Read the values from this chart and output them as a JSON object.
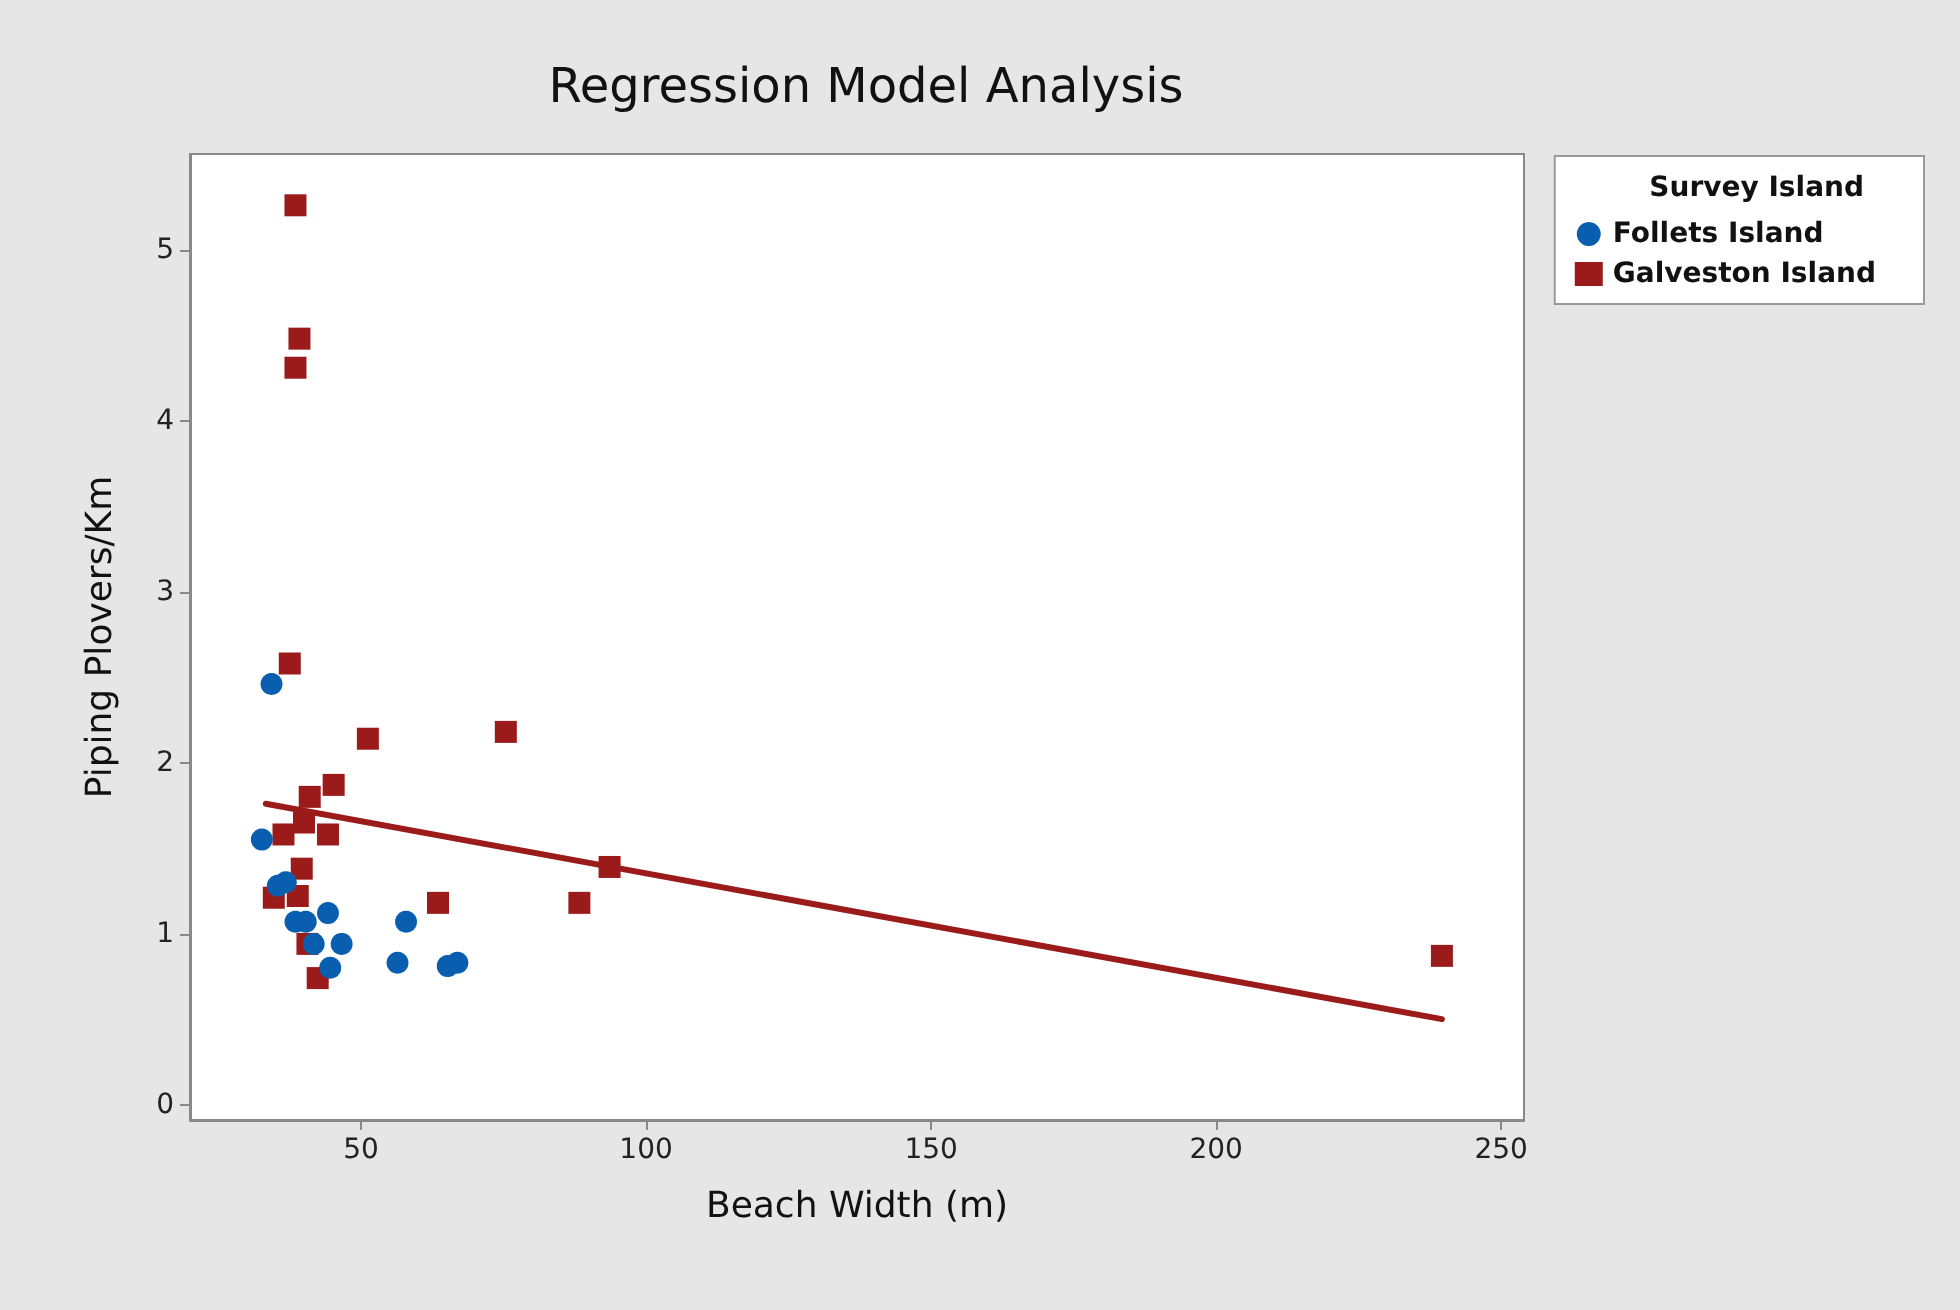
{
  "chart_data": {
    "type": "scatter",
    "title": "Regression Model Analysis",
    "xlabel": "Beach Width (m)",
    "ylabel": "Piping Plovers/Km",
    "legend_title": "Survey Island",
    "legend": "top right",
    "grid": false,
    "xlim": [
      20,
      254
    ],
    "xticks": [
      50,
      100,
      150,
      200,
      250
    ],
    "ylim": [
      -0.09,
      5.56
    ],
    "yticks": [
      0,
      1,
      2,
      3,
      4,
      5
    ],
    "series": [
      {
        "name": "Follets Island",
        "color": "#0a5eb0",
        "marker": "circle",
        "x": [
          34.3,
          32.6,
          35.4,
          36.8,
          38.5,
          40.3,
          44.2,
          46.6,
          41.7,
          44.6,
          57.9,
          56.4,
          65.2,
          66.9
        ],
        "values": [
          2.46,
          1.55,
          1.28,
          1.3,
          1.07,
          1.07,
          1.12,
          0.94,
          0.94,
          0.8,
          1.07,
          0.83,
          0.81,
          0.83
        ]
      },
      {
        "name": "Galveston Island",
        "color": "#9b1b1b",
        "marker": "square",
        "x": [
          38.5,
          39.2,
          38.5,
          37.5,
          51.2,
          75.4,
          45.2,
          41,
          40,
          36.4,
          44.2,
          39.6,
          38.9,
          34.7,
          63.5,
          40.6,
          42.4,
          93.6,
          88.3,
          239.6
        ],
        "values": [
          5.26,
          4.48,
          4.31,
          2.58,
          2.14,
          2.18,
          1.87,
          1.8,
          1.65,
          1.58,
          1.58,
          1.38,
          1.22,
          1.21,
          1.18,
          0.94,
          0.74,
          1.39,
          1.18,
          0.87
        ]
      },
      {
        "type": "line",
        "color": "#9b1b1b",
        "marker": "none",
        "line_style": "solid",
        "x": [
          33.3,
          239.6
        ],
        "values": [
          1.76,
          0.5
        ]
      }
    ]
  }
}
